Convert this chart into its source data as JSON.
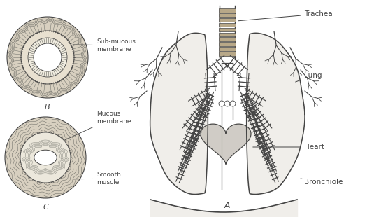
{
  "background_color": "#ffffff",
  "line_color": "#444444",
  "labels": {
    "trachea": "Trachea",
    "lung": "Lung",
    "heart": "Heart",
    "bronchiole": "Bronchiole",
    "sub_mucous": "Sub-mucous\nmembrane",
    "mucous": "Mucous\nmembrane",
    "smooth_muscle": "Smooth\nmuscle",
    "A": "A",
    "B": "B",
    "C": "C"
  },
  "fig_width": 5.45,
  "fig_height": 3.1,
  "dpi": 100
}
